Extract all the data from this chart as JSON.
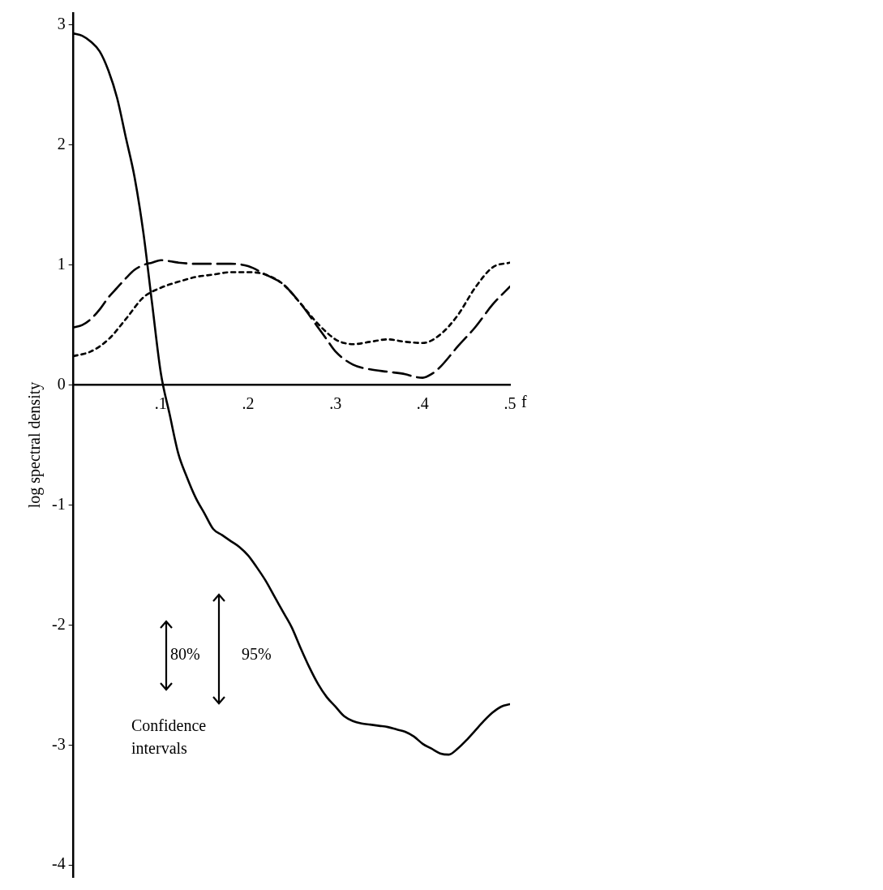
{
  "chart_data": {
    "type": "line",
    "ylabel": "log spectral density",
    "xlabel": "f",
    "xlim": [
      0,
      0.5
    ],
    "xticks": [
      {
        "value": 0.1,
        "label": ".1"
      },
      {
        "value": 0.2,
        "label": ".2"
      },
      {
        "value": 0.3,
        "label": ".3"
      },
      {
        "value": 0.4,
        "label": ".4"
      },
      {
        "value": 0.5,
        "label": ".5"
      }
    ],
    "ylim": [
      -4.1,
      3.1
    ],
    "yticks": [
      3,
      2,
      1,
      0,
      -1,
      -2,
      -3,
      -4
    ],
    "grid": false,
    "legend": false,
    "marker": "none",
    "annotations": [
      "80%",
      "95%",
      "Confidence intervals"
    ],
    "series": [
      {
        "color": "#000000",
        "line_style": "solid",
        "x": [
          0,
          0.01,
          0.02,
          0.03,
          0.04,
          0.05,
          0.06,
          0.07,
          0.08,
          0.09,
          0.1,
          0.11,
          0.12,
          0.13,
          0.14,
          0.15,
          0.16,
          0.17,
          0.18,
          0.19,
          0.2,
          0.21,
          0.22,
          0.23,
          0.24,
          0.25,
          0.26,
          0.27,
          0.28,
          0.29,
          0.3,
          0.31,
          0.32,
          0.33,
          0.34,
          0.35,
          0.36,
          0.37,
          0.38,
          0.39,
          0.4,
          0.41,
          0.42,
          0.43,
          0.44,
          0.45,
          0.46,
          0.47,
          0.48,
          0.49,
          0.5
        ],
        "values": [
          2.93,
          2.91,
          2.86,
          2.78,
          2.62,
          2.39,
          2.06,
          1.73,
          1.27,
          0.68,
          0.1,
          -0.24,
          -0.57,
          -0.77,
          -0.94,
          -1.07,
          -1.2,
          -1.25,
          -1.3,
          -1.35,
          -1.42,
          -1.52,
          -1.63,
          -1.76,
          -1.89,
          -2.02,
          -2.19,
          -2.35,
          -2.49,
          -2.6,
          -2.68,
          -2.76,
          -2.8,
          -2.82,
          -2.83,
          -2.84,
          -2.85,
          -2.87,
          -2.89,
          -2.93,
          -2.99,
          -3.03,
          -3.07,
          -3.08,
          -3.03,
          -2.96,
          -2.88,
          -2.8,
          -2.73,
          -2.68,
          -2.66
        ]
      },
      {
        "color": "#000000",
        "line_style": "dashed",
        "x": [
          0,
          0.01,
          0.02,
          0.03,
          0.04,
          0.05,
          0.06,
          0.07,
          0.08,
          0.09,
          0.1,
          0.12,
          0.14,
          0.16,
          0.18,
          0.2,
          0.22,
          0.24,
          0.26,
          0.28,
          0.29,
          0.3,
          0.32,
          0.34,
          0.36,
          0.38,
          0.39,
          0.4,
          0.41,
          0.42,
          0.44,
          0.46,
          0.48,
          0.5
        ],
        "values": [
          0.48,
          0.5,
          0.55,
          0.63,
          0.73,
          0.81,
          0.89,
          0.96,
          1.0,
          1.02,
          1.04,
          1.02,
          1.01,
          1.01,
          1.01,
          0.99,
          0.92,
          0.84,
          0.68,
          0.48,
          0.38,
          0.28,
          0.17,
          0.13,
          0.11,
          0.09,
          0.07,
          0.06,
          0.09,
          0.15,
          0.32,
          0.48,
          0.67,
          0.82
        ]
      },
      {
        "color": "#000000",
        "line_style": "dotted",
        "x": [
          0,
          0.02,
          0.04,
          0.06,
          0.08,
          0.1,
          0.12,
          0.14,
          0.16,
          0.18,
          0.2,
          0.22,
          0.24,
          0.26,
          0.28,
          0.3,
          0.31,
          0.32,
          0.34,
          0.36,
          0.38,
          0.4,
          0.42,
          0.44,
          0.46,
          0.48,
          0.5
        ],
        "values": [
          0.24,
          0.28,
          0.38,
          0.55,
          0.73,
          0.81,
          0.86,
          0.9,
          0.92,
          0.94,
          0.94,
          0.92,
          0.84,
          0.68,
          0.51,
          0.38,
          0.35,
          0.34,
          0.36,
          0.38,
          0.36,
          0.35,
          0.42,
          0.58,
          0.81,
          0.98,
          1.02
        ]
      }
    ]
  }
}
